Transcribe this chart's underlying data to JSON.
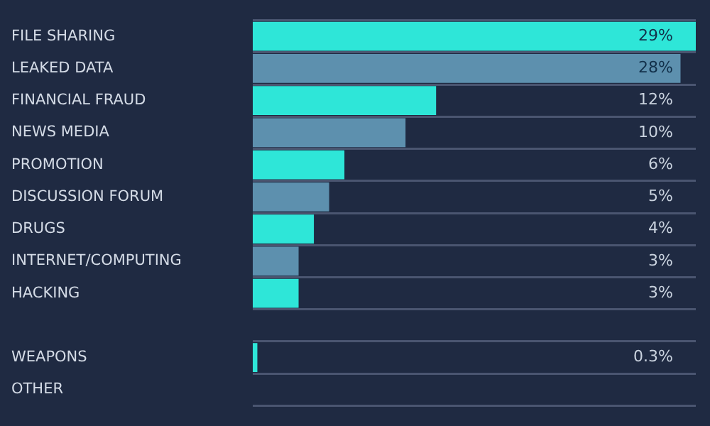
{
  "chart_data": {
    "type": "bar",
    "orientation": "horizontal",
    "categories": [
      "FILE SHARING",
      "LEAKED DATA",
      "FINANCIAL FRAUD",
      "NEWS MEDIA",
      "PROMOTION",
      "DISCUSSION FORUM",
      "DRUGS",
      "INTERNET/COMPUTING",
      "HACKING",
      null,
      "WEAPONS",
      "OTHER"
    ],
    "values": [
      29,
      28,
      12,
      10,
      6,
      5,
      4,
      3,
      3,
      null,
      0.3,
      null
    ],
    "value_labels": [
      "29%",
      "28%",
      "12%",
      "10%",
      "6%",
      "5%",
      "4%",
      "3%",
      "3%",
      null,
      "0.3%",
      null
    ],
    "colors": [
      "#2ee6d8",
      "#5d90ae",
      "#2ee6d8",
      "#5d90ae",
      "#2ee6d8",
      "#5d90ae",
      "#2ee6d8",
      "#5d90ae",
      "#2ee6d8",
      "#5d90ae",
      "#2ee6d8",
      "#5d90ae"
    ],
    "xlim": [
      0,
      29
    ],
    "tick_labels": "y",
    "grid": "y",
    "legend": false
  }
}
